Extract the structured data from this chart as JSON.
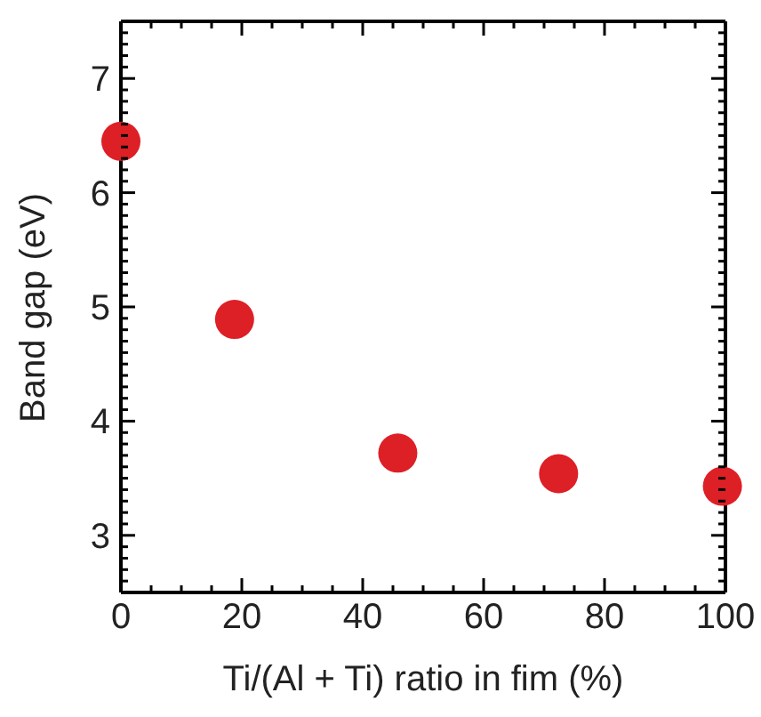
{
  "chart_data": {
    "type": "scatter",
    "xlabel": "Ti/(Al + Ti) ratio in fim (%)",
    "ylabel": "Band gap (eV)",
    "x": [
      0,
      18.8,
      45.8,
      72.4,
      99.5
    ],
    "series": [
      {
        "color": "#dd1f26",
        "values": [
          6.45,
          4.89,
          3.72,
          3.54,
          3.43
        ]
      }
    ],
    "marker": "circle",
    "xlim": [
      0,
      100
    ],
    "xticks": [
      0,
      {
        "value": 5,
        "label": null
      },
      {
        "value": 10,
        "label": null
      },
      {
        "value": 15,
        "label": null
      },
      20,
      {
        "value": 25,
        "label": null
      },
      {
        "value": 30,
        "label": null
      },
      {
        "value": 35,
        "label": null
      },
      40,
      {
        "value": 45,
        "label": null
      },
      {
        "value": 50,
        "label": null
      },
      {
        "value": 55,
        "label": null
      },
      60,
      {
        "value": 65,
        "label": null
      },
      {
        "value": 70,
        "label": null
      },
      {
        "value": 75,
        "label": null
      },
      80,
      {
        "value": 85,
        "label": null
      },
      {
        "value": 90,
        "label": null
      },
      {
        "value": 95,
        "label": null
      },
      100
    ],
    "ylim": [
      2.5,
      7.5
    ],
    "yticks": [
      {
        "value": 2.5,
        "label": null
      },
      {
        "value": 2.6,
        "label": null
      },
      {
        "value": 2.7,
        "label": null
      },
      {
        "value": 2.8,
        "label": null
      },
      {
        "value": 2.9,
        "label": null
      },
      3,
      {
        "value": 3.1,
        "label": null
      },
      {
        "value": 3.2,
        "label": null
      },
      {
        "value": 3.3,
        "label": null
      },
      {
        "value": 3.4,
        "label": null
      },
      {
        "value": 3.5,
        "label": null
      },
      {
        "value": 3.6,
        "label": null
      },
      {
        "value": 3.7,
        "label": null
      },
      {
        "value": 3.8,
        "label": null
      },
      {
        "value": 3.9,
        "label": null
      },
      4,
      {
        "value": 4.1,
        "label": null
      },
      {
        "value": 4.2,
        "label": null
      },
      {
        "value": 4.3,
        "label": null
      },
      {
        "value": 4.4,
        "label": null
      },
      {
        "value": 4.5,
        "label": null
      },
      {
        "value": 4.6,
        "label": null
      },
      {
        "value": 4.7,
        "label": null
      },
      {
        "value": 4.8,
        "label": null
      },
      {
        "value": 4.9,
        "label": null
      },
      5,
      {
        "value": 5.1,
        "label": null
      },
      {
        "value": 5.2,
        "label": null
      },
      {
        "value": 5.3,
        "label": null
      },
      {
        "value": 5.4,
        "label": null
      },
      {
        "value": 5.5,
        "label": null
      },
      {
        "value": 5.6,
        "label": null
      },
      {
        "value": 5.7,
        "label": null
      },
      {
        "value": 5.8,
        "label": null
      },
      {
        "value": 5.9,
        "label": null
      },
      6,
      {
        "value": 6.1,
        "label": null
      },
      {
        "value": 6.2,
        "label": null
      },
      {
        "value": 6.3,
        "label": null
      },
      {
        "value": 6.4,
        "label": null
      },
      {
        "value": 6.5,
        "label": null
      },
      {
        "value": 6.6,
        "label": null
      },
      {
        "value": 6.7,
        "label": null
      },
      {
        "value": 6.8,
        "label": null
      },
      {
        "value": 6.9,
        "label": null
      },
      7,
      {
        "value": 7.1,
        "label": null
      },
      {
        "value": 7.2,
        "label": null
      },
      {
        "value": 7.3,
        "label": null
      },
      {
        "value": 7.4,
        "label": null
      },
      {
        "value": 7.5,
        "label": null
      }
    ]
  }
}
